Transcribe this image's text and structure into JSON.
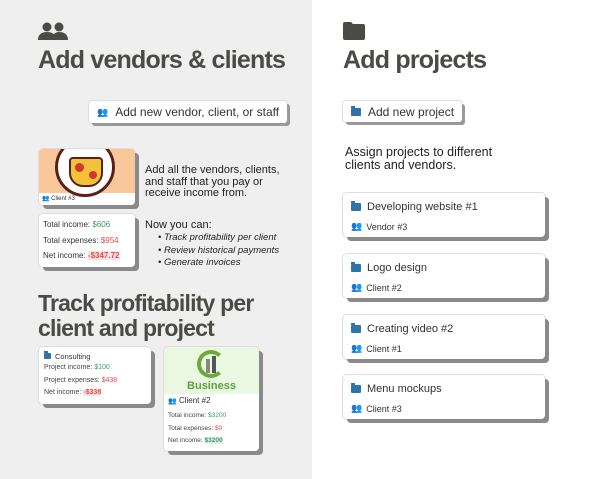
{
  "left": {
    "title": "Add vendors & clients",
    "add_button": "Add new vendor, client, or staff",
    "description": "Add all the vendors, clients, and staff that you pay or receive income from.",
    "now_you_can": "Now you can:",
    "bullets": [
      "Track profitability per client",
      "Review historical payments",
      "Generate invoices"
    ],
    "pizza_card": {
      "logo_text": "PIZZA",
      "label": "Client #3"
    },
    "totals": {
      "income_label": "Total income:",
      "income": "$606",
      "expenses_label": "Total expenses:",
      "expenses": "$954",
      "net_label": "Net income:",
      "net": "-$347.72"
    },
    "title2": "Track profitability per client and project",
    "consulting": {
      "name": "Consulting",
      "income_label": "Project income:",
      "income": "$100",
      "expenses_label": "Project expenses:",
      "expenses": "$438",
      "net_label": "Net income:",
      "net": "-$338"
    },
    "business": {
      "logo_text": "Business",
      "label": "Client #2",
      "income_label": "Total income:",
      "income": "$3200",
      "expenses_label": "Total expenses:",
      "expenses": "$0",
      "net_label": "Net income:",
      "net": "$3200"
    }
  },
  "right": {
    "title": "Add projects",
    "add_button": "Add new project",
    "description": "Assign projects to different clients and vendors.",
    "projects": [
      {
        "name": "Developing website #1",
        "party": "Vendor #3"
      },
      {
        "name": "Logo design",
        "party": "Client #2"
      },
      {
        "name": "Creating video #2",
        "party": "Client #1"
      },
      {
        "name": "Menu mockups",
        "party": "Client #3"
      }
    ]
  },
  "colors": {
    "green": "#3a9a6a",
    "red": "#e24b4b",
    "folder": "#2f74a8",
    "people": "#8a5bb5"
  }
}
